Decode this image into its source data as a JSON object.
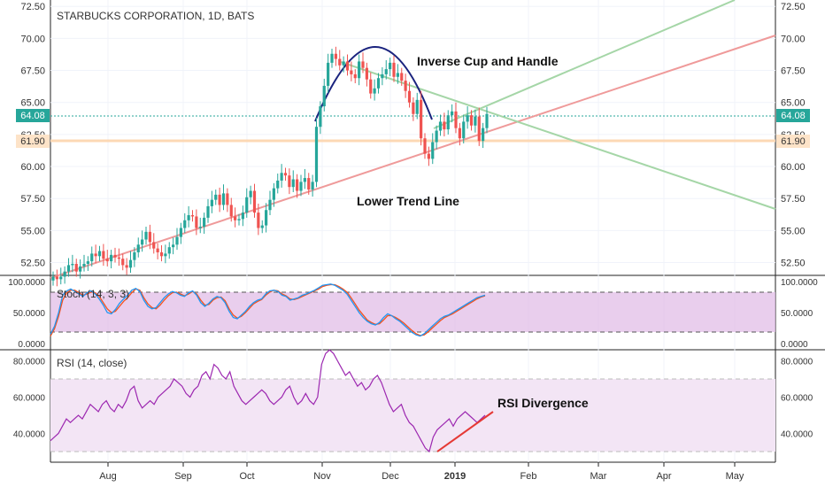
{
  "header": {
    "title": "STARBUCKS CORPORATION, 1D, BATS"
  },
  "annotations": {
    "cup": "Inverse Cup and Handle",
    "trend": "Lower Trend Line",
    "rsi_div": "RSI Divergence"
  },
  "price_labels": {
    "current": "64.08",
    "level": "61.90"
  },
  "colors": {
    "up": "#26a69a",
    "down": "#ef5350",
    "price_line": "#26a69a",
    "level_line": "#fcd8b4",
    "stoch_k": "#2196f3",
    "stoch_d": "#f4511e",
    "rsi": "#9c27b0",
    "band": "#e1bee7",
    "cup_arc": "#1a237e"
  },
  "chart_data": [
    {
      "type": "candlestick",
      "title": "STARBUCKS CORPORATION, 1D, BATS",
      "ylim": [
        51.5,
        73
      ],
      "yticks": [
        "52.50",
        "55.00",
        "57.50",
        "60.00",
        "62.50",
        "65.00",
        "67.50",
        "70.00",
        "72.50"
      ],
      "xticks": [
        "Aug",
        "Sep",
        "Oct",
        "Nov",
        "Dec",
        "2019",
        "Feb",
        "Mar",
        "Apr",
        "May"
      ],
      "close": [
        51.4,
        51.2,
        51.4,
        51.8,
        52.3,
        52.4,
        51.8,
        52.2,
        52.4,
        52.6,
        53.2,
        53.0,
        53.4,
        52.8,
        52.6,
        53.1,
        52.9,
        52.8,
        52.3,
        52.1,
        52.7,
        53.3,
        53.9,
        54.3,
        54.9,
        54.1,
        53.6,
        53.3,
        53.0,
        53.2,
        53.7,
        53.9,
        54.5,
        55.2,
        55.8,
        56.2,
        56.1,
        55.2,
        55.3,
        56.0,
        56.9,
        57.4,
        57.8,
        57.0,
        57.9,
        57.0,
        56.1,
        55.8,
        55.9,
        56.4,
        57.6,
        58.1,
        56.4,
        55.2,
        55.4,
        56.6,
        57.4,
        58.3,
        58.9,
        59.5,
        59.3,
        58.4,
        59.0,
        58.1,
        58.8,
        59.1,
        58.2,
        58.8,
        63.1,
        64.7,
        66.3,
        68.1,
        68.8,
        68.4,
        67.9,
        68.2,
        67.5,
        67.2,
        66.9,
        68.2,
        67.7,
        66.8,
        65.7,
        66.1,
        66.9,
        67.2,
        67.6,
        68.1,
        67.0,
        67.3,
        66.7,
        65.9,
        65.0,
        64.1,
        65.2,
        62.2,
        61.0,
        60.6,
        61.9,
        62.8,
        63.5,
        62.9,
        64.0,
        64.3,
        63.0,
        62.2,
        63.5,
        64.0,
        63.2,
        63.9,
        62.0,
        63.0,
        64.1
      ]
    },
    {
      "type": "line",
      "title": "Stoch (14, 3, 3)",
      "ylim": [
        0,
        100
      ],
      "yticks": [
        "0.0000",
        "50.0000",
        "100.0000"
      ],
      "bands": [
        20,
        80
      ],
      "series": [
        {
          "values": [
            15,
            28,
            50,
            78,
            85,
            88,
            84,
            80,
            76,
            82,
            85,
            80,
            72,
            62,
            50,
            48,
            55,
            65,
            72,
            78,
            86,
            89,
            84,
            70,
            60,
            56,
            58,
            66,
            74,
            80,
            84,
            82,
            78,
            76,
            82,
            85,
            78,
            66,
            60,
            65,
            72,
            76,
            74,
            66,
            52,
            42,
            40,
            46,
            52,
            60,
            66,
            70,
            72,
            80,
            85,
            86,
            84,
            78,
            76,
            70,
            72,
            74,
            78,
            80,
            83,
            86,
            90,
            94,
            95,
            96,
            94,
            90,
            86,
            80,
            70,
            60,
            50,
            42,
            36,
            32,
            30,
            34,
            42,
            48,
            45,
            40,
            36,
            30,
            24,
            18,
            14,
            12,
            16,
            22,
            28,
            34,
            40,
            44,
            46,
            50,
            54,
            58,
            62,
            66,
            70,
            74,
            76,
            78
          ]
        },
        {
          "values": [
            12,
            24,
            44,
            70,
            82,
            86,
            86,
            82,
            78,
            80,
            83,
            82,
            76,
            66,
            56,
            50,
            52,
            60,
            68,
            74,
            82,
            88,
            86,
            74,
            64,
            58,
            56,
            62,
            70,
            77,
            82,
            83,
            80,
            77,
            80,
            84,
            80,
            70,
            62,
            63,
            70,
            74,
            75,
            69,
            56,
            46,
            41,
            44,
            50,
            57,
            64,
            68,
            71,
            78,
            83,
            86,
            85,
            80,
            77,
            72,
            71,
            73,
            76,
            79,
            82,
            85,
            88,
            92,
            94,
            95,
            95,
            92,
            88,
            83,
            74,
            64,
            54,
            46,
            38,
            34,
            31,
            32,
            38,
            45,
            45,
            42,
            38,
            33,
            27,
            21,
            16,
            13,
            14,
            19,
            25,
            31,
            37,
            42,
            45,
            48,
            52,
            56,
            60,
            64,
            68,
            72,
            75,
            77
          ]
        }
      ]
    },
    {
      "type": "line",
      "title": "RSI (14, close)",
      "ylim": [
        25,
        90
      ],
      "yticks": [
        "40.0000",
        "60.0000",
        "80.0000"
      ],
      "bands": [
        30,
        70
      ],
      "series": [
        {
          "values": [
            36,
            38,
            40,
            44,
            48,
            46,
            48,
            50,
            48,
            52,
            56,
            54,
            52,
            56,
            58,
            54,
            52,
            56,
            54,
            58,
            64,
            66,
            58,
            54,
            56,
            58,
            56,
            60,
            62,
            64,
            66,
            70,
            68,
            66,
            62,
            60,
            64,
            66,
            72,
            74,
            70,
            78,
            76,
            72,
            70,
            74,
            66,
            62,
            58,
            56,
            58,
            60,
            62,
            64,
            62,
            58,
            56,
            58,
            60,
            64,
            66,
            60,
            56,
            58,
            62,
            58,
            56,
            60,
            78,
            84,
            86,
            84,
            80,
            76,
            72,
            74,
            70,
            66,
            68,
            64,
            66,
            70,
            72,
            68,
            62,
            56,
            52,
            54,
            56,
            50,
            46,
            44,
            40,
            36,
            32,
            30,
            38,
            42,
            44,
            46,
            48,
            44,
            48,
            50,
            52,
            50,
            48,
            46,
            48,
            50
          ]
        }
      ]
    }
  ]
}
